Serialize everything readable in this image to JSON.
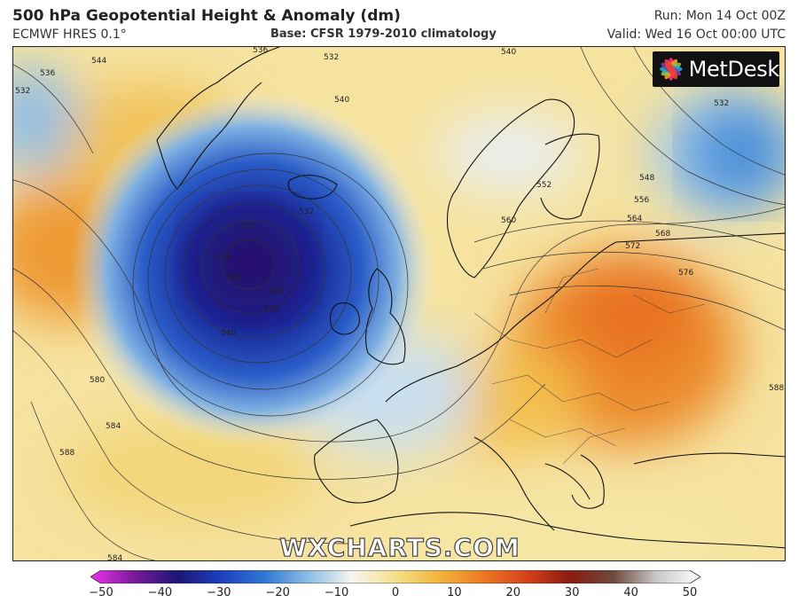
{
  "header": {
    "title": "500 hPa Geopotential Height & Anomaly (dm)",
    "model": "ECMWF HRES 0.1°",
    "base": "Base: CFSR 1979-2010 climatology",
    "run": "Run: Mon 14 Oct 00Z",
    "valid": "Valid: Wed 16 Oct 00:00 UTC"
  },
  "logo": {
    "text": "MetDesk"
  },
  "watermark": "WXCHARTS.COM",
  "contour_labels": [
    "536",
    "532",
    "544",
    "536",
    "532",
    "540",
    "540",
    "532",
    "552",
    "556",
    "548",
    "532",
    "560",
    "564",
    "568",
    "572",
    "576",
    "532",
    "536",
    "528",
    "524",
    "528",
    "540",
    "580",
    "584",
    "588",
    "584",
    "588"
  ],
  "colorbar": {
    "ticks": [
      "−50",
      "−40",
      "−30",
      "−20",
      "−10",
      "0",
      "10",
      "20",
      "30",
      "40",
      "50"
    ],
    "min": -50,
    "max": 50,
    "colors": [
      "#ee30ee",
      "#7a1a9a",
      "#1a1675",
      "#1e3fbf",
      "#2f78d4",
      "#8dbde4",
      "#f5f5f0",
      "#f5e08a",
      "#f2b53c",
      "#ec7a22",
      "#d8421a",
      "#8a1b10",
      "#6e4a3e",
      "#c9c9c9",
      "#ffffff"
    ]
  }
}
